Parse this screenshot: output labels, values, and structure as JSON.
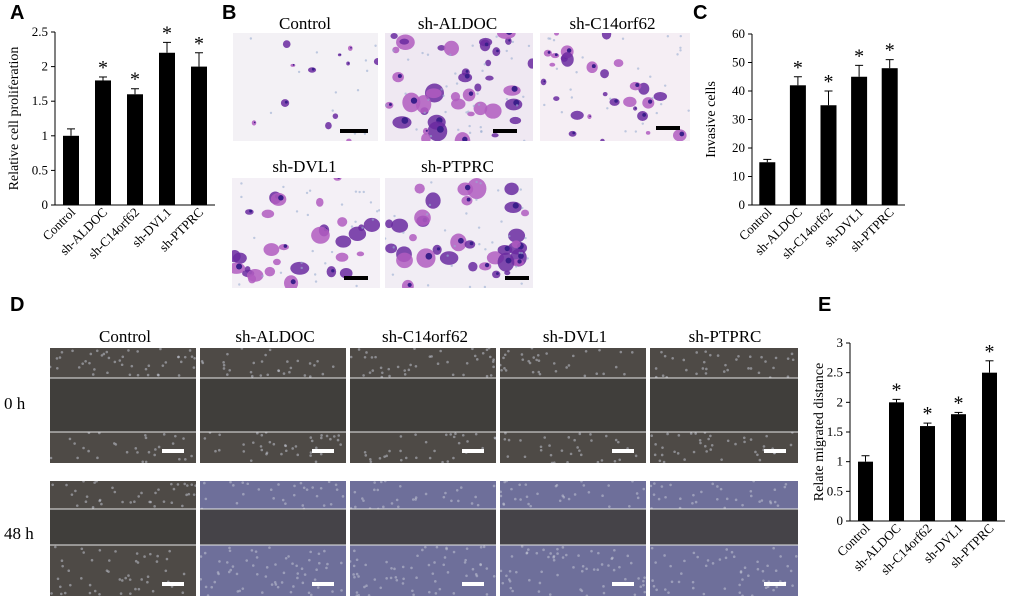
{
  "panel_letters": {
    "a": "A",
    "b": "B",
    "c": "C",
    "d": "D",
    "e": "E"
  },
  "colors": {
    "bar": "#000000",
    "axis": "#000000",
    "stain": "#7b2fa0",
    "wound_bg": "#4e4a46",
    "wound_cells": "#6e6f9a"
  },
  "chart_data": [
    {
      "panel": "A",
      "type": "bar",
      "ylabel": "Relative cell proliferation",
      "categories": [
        "Control",
        "sh-ALDOC",
        "sh-C14orf62",
        "sh-DVL1",
        "sh-PTPRC"
      ],
      "values": [
        1.0,
        1.8,
        1.6,
        2.2,
        2.0
      ],
      "errors": [
        0.1,
        0.05,
        0.08,
        0.15,
        0.2
      ],
      "significance": [
        "",
        "*",
        "*",
        "*",
        "*"
      ],
      "ylim": [
        0,
        2.5
      ],
      "yticks": [
        "0",
        "0.5",
        "1",
        "1.5",
        "2",
        "2.5"
      ]
    },
    {
      "panel": "C",
      "type": "bar",
      "ylabel": "Invasive cells",
      "categories": [
        "Control",
        "sh-ALDOC",
        "sh-C14orf62",
        "sh-DVL1",
        "sh-PTPRC"
      ],
      "values": [
        15,
        42,
        35,
        45,
        48
      ],
      "errors": [
        1,
        3,
        5,
        4,
        3
      ],
      "significance": [
        "",
        "*",
        "*",
        "*",
        "*"
      ],
      "ylim": [
        0,
        60
      ],
      "yticks": [
        "0",
        "10",
        "20",
        "30",
        "40",
        "50",
        "60"
      ]
    },
    {
      "panel": "E",
      "type": "bar",
      "ylabel": "Relate migrated distance",
      "categories": [
        "Control",
        "sh-ALDOC",
        "sh-C14orf62",
        "sh-DVL1",
        "sh-PTPRC"
      ],
      "values": [
        1.0,
        2.0,
        1.6,
        1.8,
        2.5
      ],
      "errors": [
        0.1,
        0.05,
        0.05,
        0.03,
        0.2
      ],
      "significance": [
        "",
        "*",
        "*",
        "*",
        "*"
      ],
      "ylim": [
        0,
        3
      ],
      "yticks": [
        "0",
        "0.5",
        "1",
        "1.5",
        "2",
        "2.5",
        "3"
      ]
    }
  ],
  "invasion_images": {
    "titles": [
      "Control",
      "sh-ALDOC",
      "sh-C14orf62",
      "sh-DVL1",
      "sh-PTPRC"
    ]
  },
  "migration_images": {
    "column_titles": [
      "Control",
      "sh-ALDOC",
      "sh-C14orf62",
      "sh-DVL1",
      "sh-PTPRC"
    ],
    "row_labels": [
      "0 h",
      "48 h"
    ]
  }
}
